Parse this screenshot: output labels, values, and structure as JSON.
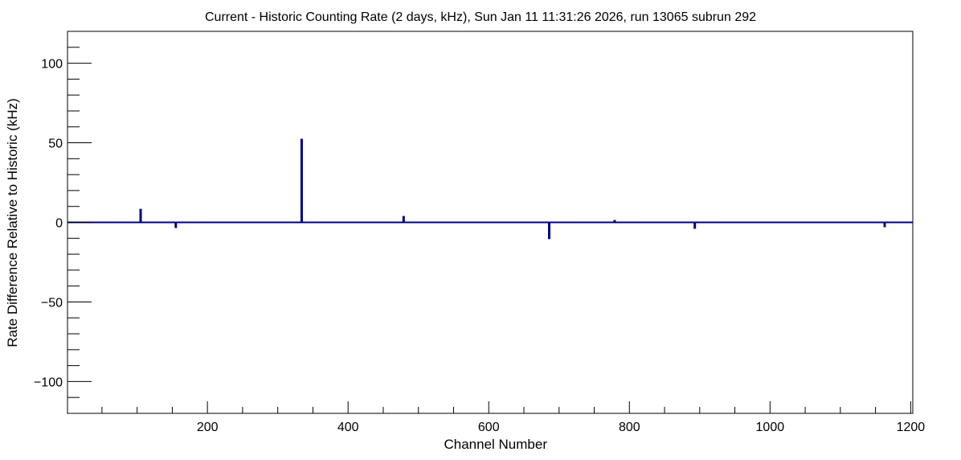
{
  "chart_data": {
    "type": "bar",
    "title": "Current - Historic Counting Rate (2 days, kHz), Sun Jan 11 11:31:26 2026, run 13065 subrun 292",
    "xlabel": "Channel Number",
    "ylabel": "Rate Difference Relative to Historic (kHz)",
    "xlim": [
      1,
      1203
    ],
    "ylim": [
      -120,
      120
    ],
    "x_ticks": [
      200,
      400,
      600,
      800,
      1000,
      1200
    ],
    "y_ticks": [
      -100,
      -50,
      0,
      50,
      100
    ],
    "grid": false,
    "legend": "none",
    "color": "#000080",
    "series": [
      {
        "channels": [
          105,
          155,
          334,
          479,
          686,
          779,
          893,
          1163
        ],
        "values": [
          8.5,
          -3.5,
          52.5,
          4.0,
          -10.5,
          1.5,
          -4.0,
          -3.0
        ]
      }
    ]
  }
}
